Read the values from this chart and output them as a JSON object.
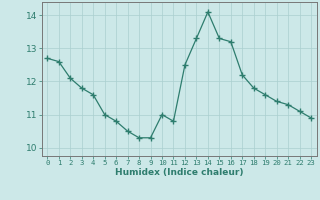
{
  "x": [
    0,
    1,
    2,
    3,
    4,
    5,
    6,
    7,
    8,
    9,
    10,
    11,
    12,
    13,
    14,
    15,
    16,
    17,
    18,
    19,
    20,
    21,
    22,
    23
  ],
  "y": [
    12.7,
    12.6,
    12.1,
    11.8,
    11.6,
    11.0,
    10.8,
    10.5,
    10.3,
    10.3,
    11.0,
    10.8,
    12.5,
    13.3,
    14.1,
    13.3,
    13.2,
    12.2,
    11.8,
    11.6,
    11.4,
    11.3,
    11.1,
    10.9
  ],
  "line_color": "#2e7d6e",
  "marker": "+",
  "marker_size": 4,
  "background_color": "#cce8e8",
  "grid_color": "#aacfcf",
  "xlabel": "Humidex (Indice chaleur)",
  "xlim": [
    -0.5,
    23.5
  ],
  "ylim": [
    9.75,
    14.4
  ],
  "xticks": [
    0,
    1,
    2,
    3,
    4,
    5,
    6,
    7,
    8,
    9,
    10,
    11,
    12,
    13,
    14,
    15,
    16,
    17,
    18,
    19,
    20,
    21,
    22,
    23
  ],
  "yticks": [
    10,
    11,
    12,
    13,
    14
  ],
  "xlabel_fontsize": 6.5,
  "xticklabel_fontsize": 5.2,
  "yticklabel_fontsize": 6.5,
  "spine_color": "#777777",
  "tick_color": "#2e7d6e",
  "label_color": "#2e7d6e"
}
